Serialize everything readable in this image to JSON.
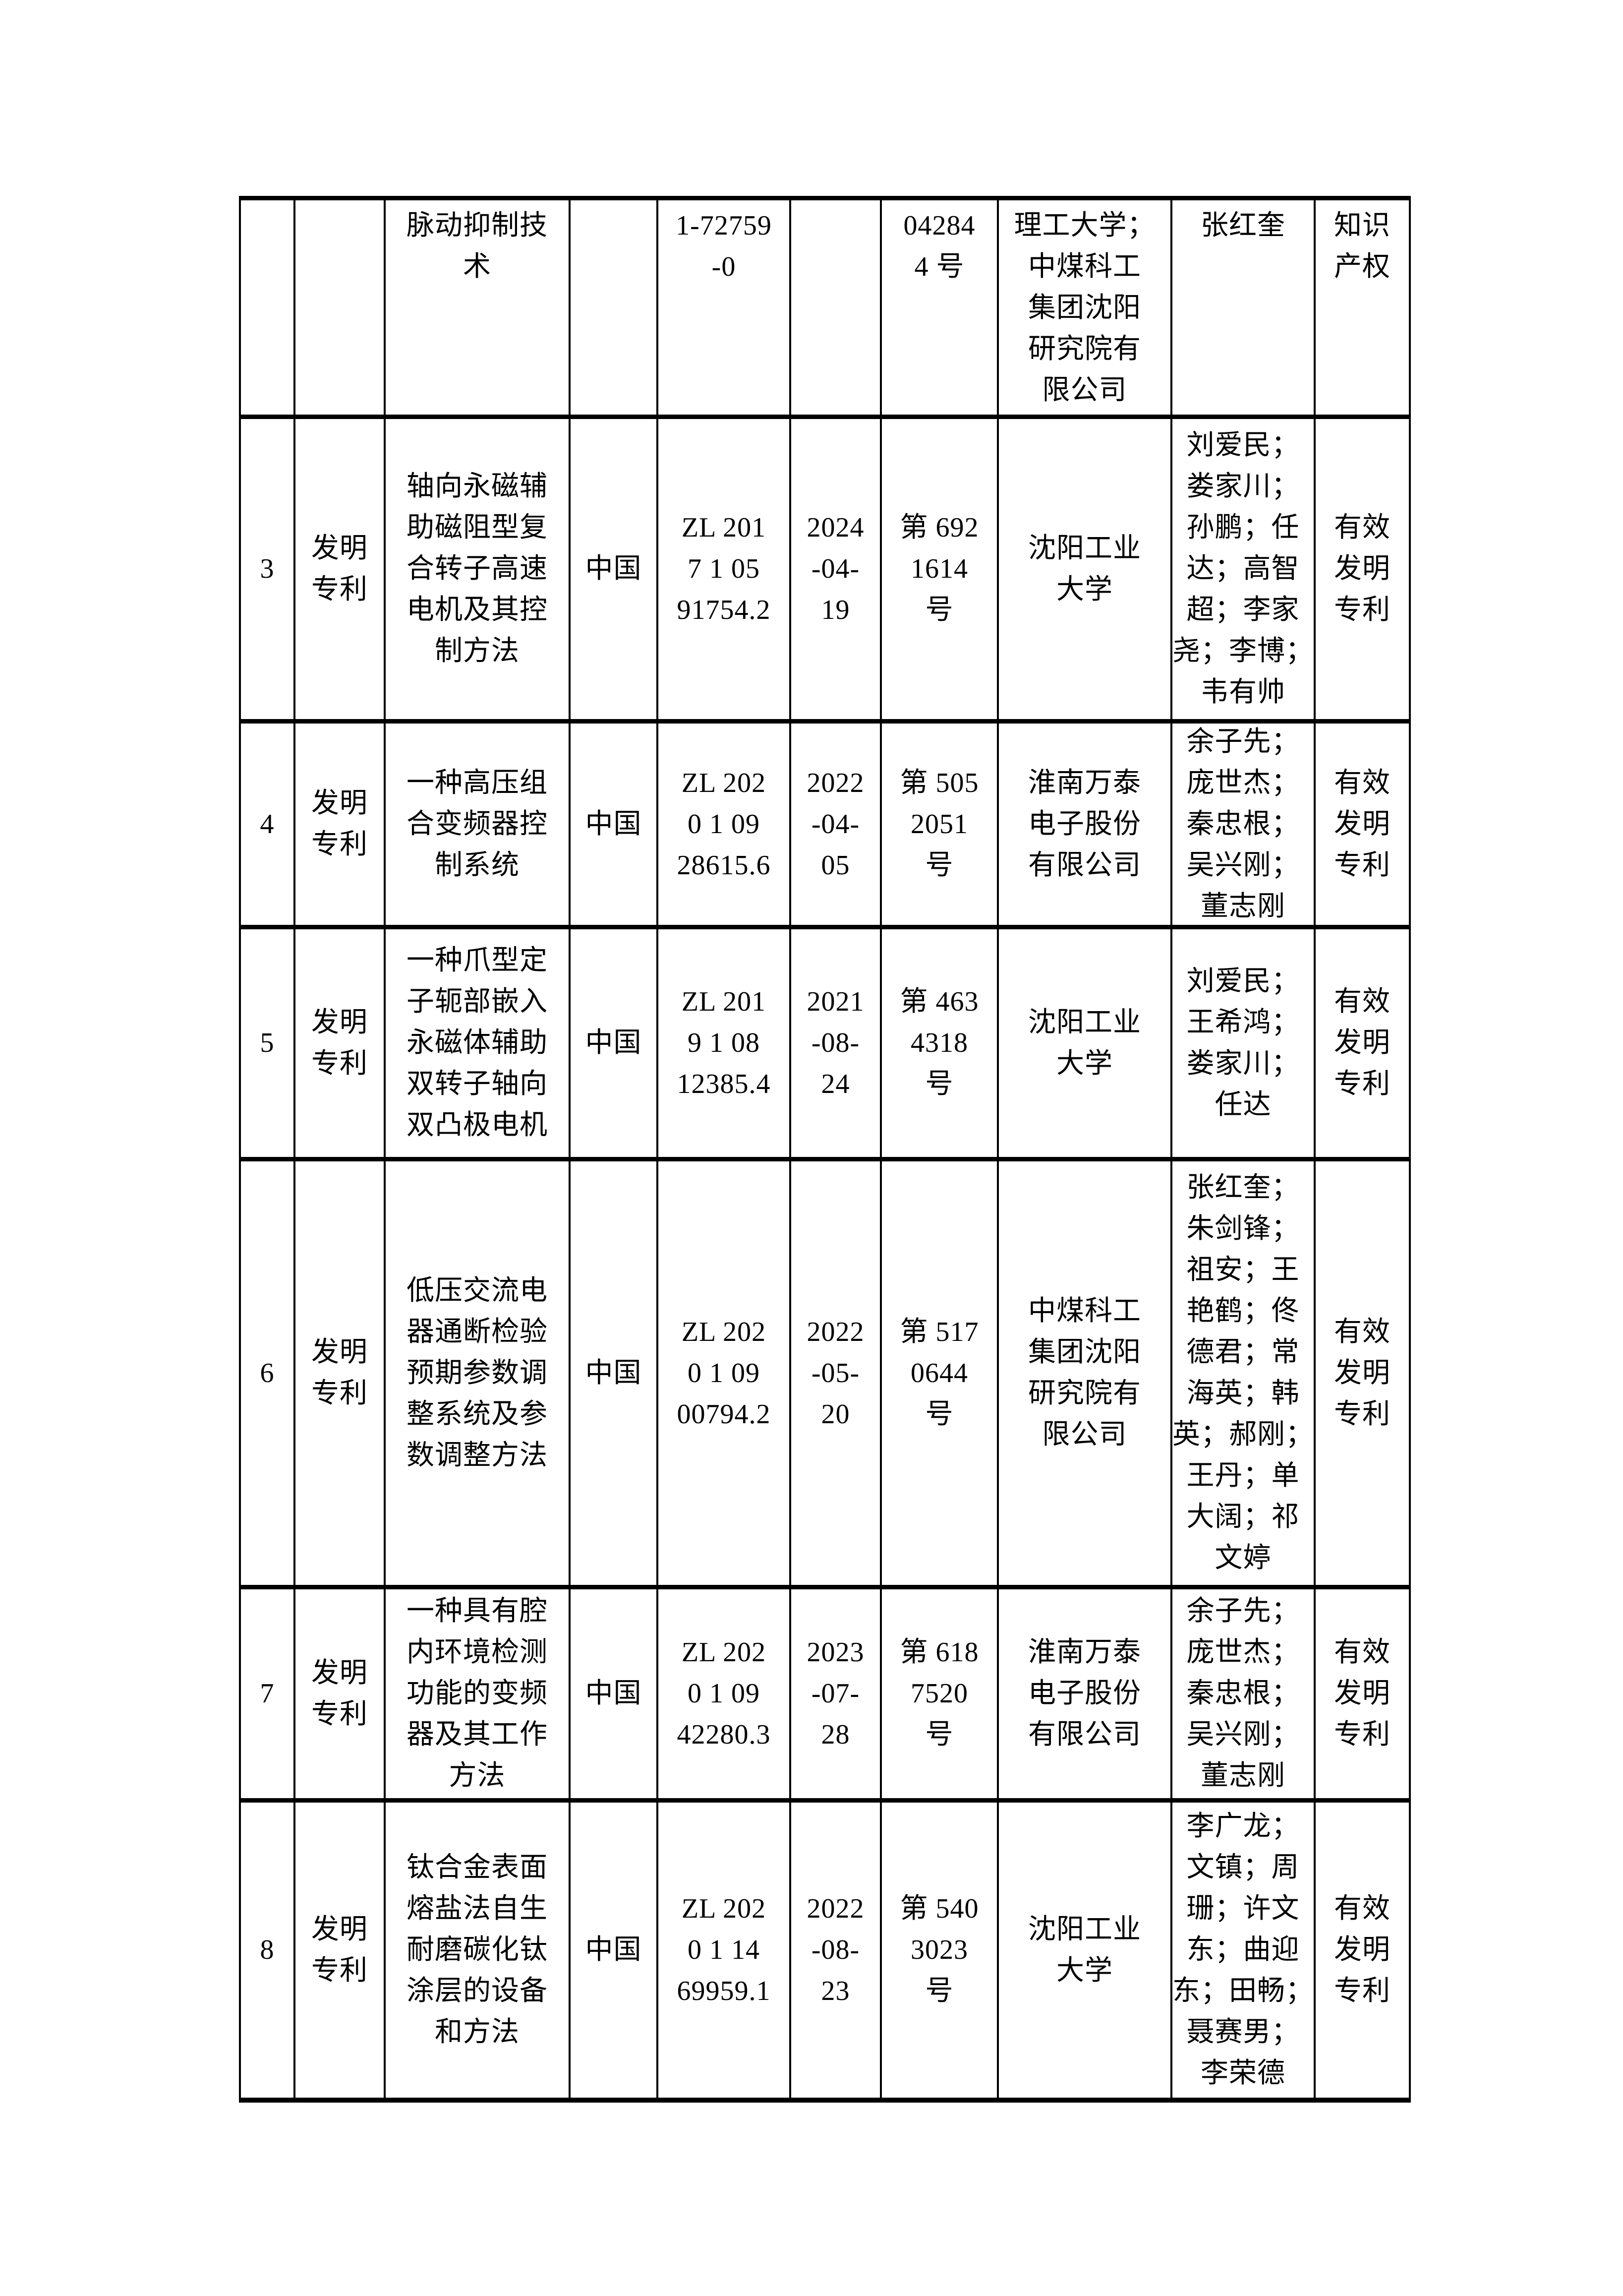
{
  "colors": {
    "page_background": "#ffffff",
    "table_border": "#000000",
    "text": "#000000"
  },
  "table": {
    "rows": [
      {
        "num": "",
        "type": "",
        "title": "脉动抑制技\n术",
        "country": "",
        "patent_no": "1-72759\n-0",
        "date": "",
        "cert_no": "04284\n4 号",
        "assignee": "理工大学；\n中煤科工\n集团沈阳\n研究院有\n限公司",
        "inventors": "张红奎",
        "status": "知识\n产权"
      },
      {
        "num": "3",
        "type": "发明\n专利",
        "title": "轴向永磁辅\n助磁阻型复\n合转子高速\n电机及其控\n制方法",
        "country": "中国",
        "patent_no": "ZL 201\n7 1 05\n91754.2",
        "date": "2024\n-04-\n19",
        "cert_no": "第 692\n1614\n号",
        "assignee": "沈阳工业\n大学",
        "inventors": "刘爱民；\n娄家川；\n孙鹏；任\n达；高智\n超；李家\n尧；李博；\n韦有帅",
        "status": "有效\n发明\n专利"
      },
      {
        "num": "4",
        "type": "发明\n专利",
        "title": "一种高压组\n合变频器控\n制系统",
        "country": "中国",
        "patent_no": "ZL 202\n0 1 09\n28615.6",
        "date": "2022\n-04-\n05",
        "cert_no": "第 505\n2051\n号",
        "assignee": "淮南万泰\n电子股份\n有限公司",
        "inventors": "余子先；\n庞世杰；\n秦忠根；\n吴兴刚；\n董志刚",
        "status": "有效\n发明\n专利"
      },
      {
        "num": "5",
        "type": "发明\n专利",
        "title": "一种爪型定\n子轭部嵌入\n永磁体辅助\n双转子轴向\n双凸极电机",
        "country": "中国",
        "patent_no": "ZL 201\n9 1 08\n12385.4",
        "date": "2021\n-08-\n24",
        "cert_no": "第 463\n4318\n号",
        "assignee": "沈阳工业\n大学",
        "inventors": "刘爱民；\n王希鸿；\n娄家川；\n任达",
        "status": "有效\n发明\n专利"
      },
      {
        "num": "6",
        "type": "发明\n专利",
        "title": "低压交流电\n器通断检验\n预期参数调\n整系统及参\n数调整方法",
        "country": "中国",
        "patent_no": "ZL 202\n0 1 09\n00794.2",
        "date": "2022\n-05-\n20",
        "cert_no": "第 517\n0644\n号",
        "assignee": "中煤科工\n集团沈阳\n研究院有\n限公司",
        "inventors": "张红奎；\n朱剑锋；\n祖安；王\n艳鹤；佟\n德君；常\n海英；韩\n英；郝刚；\n王丹；单\n大阔；祁\n文婷",
        "status": "有效\n发明\n专利"
      },
      {
        "num": "7",
        "type": "发明\n专利",
        "title": "一种具有腔\n内环境检测\n功能的变频\n器及其工作\n方法",
        "country": "中国",
        "patent_no": "ZL 202\n0 1 09\n42280.3",
        "date": "2023\n-07-\n28",
        "cert_no": "第 618\n7520\n号",
        "assignee": "淮南万泰\n电子股份\n有限公司",
        "inventors": "余子先；\n庞世杰；\n秦忠根；\n吴兴刚；\n董志刚",
        "status": "有效\n发明\n专利"
      },
      {
        "num": "8",
        "type": "发明\n专利",
        "title": "钛合金表面\n熔盐法自生\n耐磨碳化钛\n涂层的设备\n和方法",
        "country": "中国",
        "patent_no": "ZL 202\n0 1 14\n69959.1",
        "date": "2022\n-08-\n23",
        "cert_no": "第 540\n3023\n号",
        "assignee": "沈阳工业\n大学",
        "inventors": "李广龙；\n文镇；周\n珊；许文\n东；曲迎\n东；田畅；\n聂赛男；\n李荣德",
        "status": "有效\n发明\n专利"
      }
    ]
  }
}
